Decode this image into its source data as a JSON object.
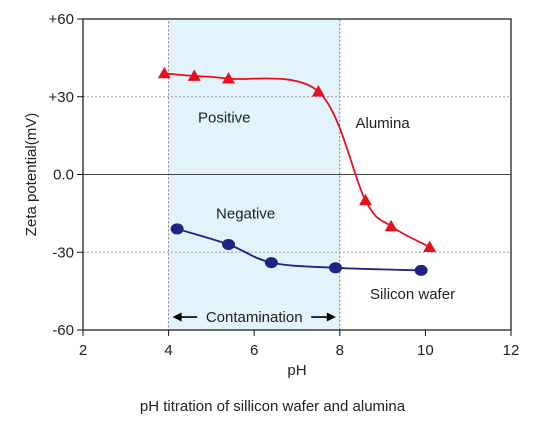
{
  "caption": "pH titration of sillicon wafer and alumina",
  "colors": {
    "alumina": "#e8101e",
    "silicon": "#1e2385",
    "region_fill": "#e3f3fb",
    "axis": "#111111",
    "gridline": "#9a9a9a"
  },
  "chart_data": {
    "type": "line",
    "xlabel": "pH",
    "ylabel": "Zeta potential(mV)",
    "xlim": [
      2,
      12
    ],
    "ylim": [
      -60,
      60
    ],
    "xticks": [
      "2",
      "4",
      "6",
      "8",
      "10",
      "12"
    ],
    "xtick_values": [
      2,
      4,
      6,
      8,
      10,
      12
    ],
    "yticks": [
      "+60",
      "+30",
      "0.0",
      "-30",
      "-60"
    ],
    "ytick_values": [
      60,
      30,
      0,
      -30,
      -60
    ],
    "grid": "horizontal dotted lines at y ticks",
    "shaded_region": {
      "from": 4,
      "to": 8,
      "label": "Contamination"
    },
    "annotations": {
      "positive": "Positive",
      "negative": "Negative"
    },
    "series": [
      {
        "name": "Alumina",
        "marker": "triangle",
        "x": [
          3.9,
          4.6,
          5.4,
          7.5,
          8.6,
          9.2,
          10.1
        ],
        "y": [
          39,
          38,
          37,
          32,
          -10,
          -20,
          -28
        ]
      },
      {
        "name": "Silicon wafer",
        "marker": "circle",
        "x": [
          4.2,
          5.4,
          6.4,
          7.9,
          9.9
        ],
        "y": [
          -21,
          -27,
          -34,
          -36,
          -37
        ]
      }
    ]
  }
}
